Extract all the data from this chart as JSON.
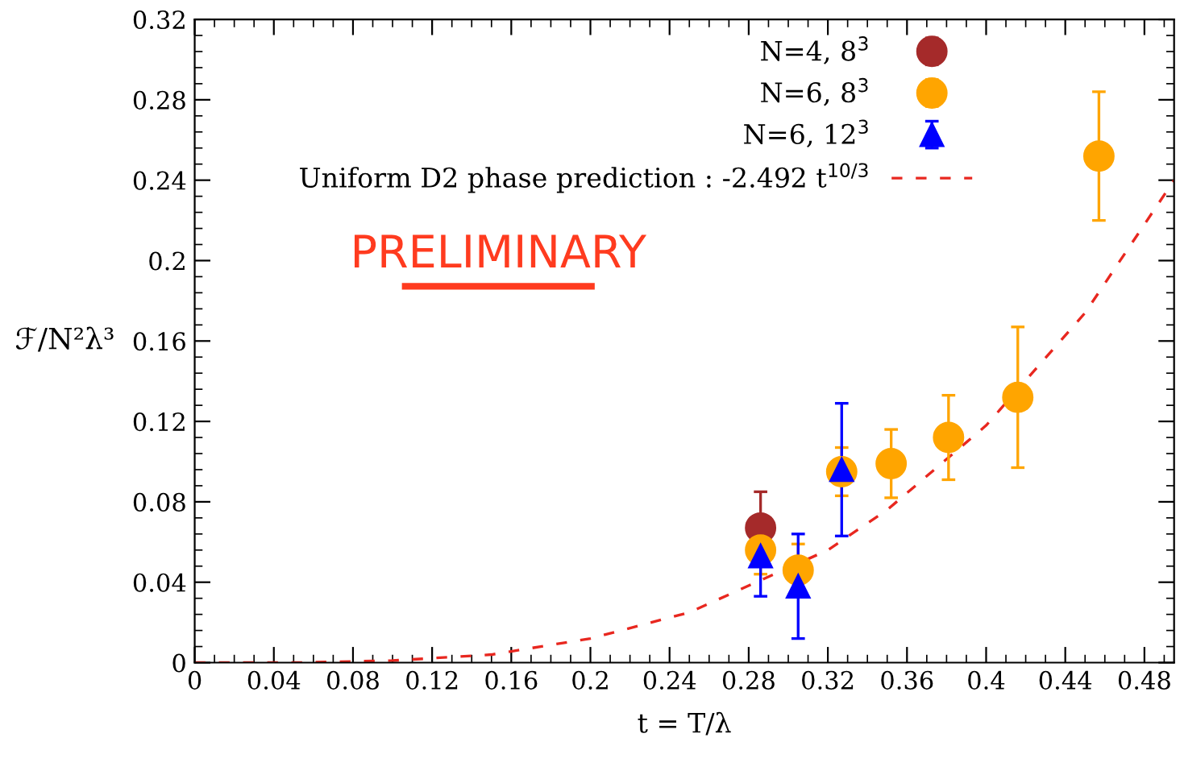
{
  "chart_data": {
    "type": "scatter",
    "xlabel": "t = T/λ",
    "ylabel": "ℱ/N²λ³",
    "annotations": [
      "PRELIMINARY"
    ],
    "xlim": [
      0,
      0.495
    ],
    "xticks": [
      0,
      0.04,
      0.08,
      0.12,
      0.16,
      0.2,
      0.24,
      0.28,
      0.32,
      0.36,
      0.4,
      0.44,
      0.48
    ],
    "ylim": [
      0,
      0.32
    ],
    "yticks": [
      0,
      0.04,
      0.08,
      0.12,
      0.16,
      0.2,
      0.24,
      0.28,
      0.32
    ],
    "grid": false,
    "legend": "top",
    "series": [
      {
        "name": "N=4, 8$^{3}$",
        "marker": "circle",
        "color": "#a52a2a",
        "x": [
          0.286
        ],
        "values": [
          0.067
        ],
        "errors": [
          0.018
        ]
      },
      {
        "name": "N=6, 8$^{3}$",
        "marker": "circle",
        "color": "#ffa500",
        "x": [
          0.286,
          0.305,
          0.327,
          0.352,
          0.381,
          0.416,
          0.457
        ],
        "values": [
          0.056,
          0.046,
          0.095,
          0.099,
          0.112,
          0.132,
          0.252
        ],
        "errors": [
          0.012,
          0.013,
          0.012,
          0.017,
          0.021,
          0.035,
          0.032
        ]
      },
      {
        "name": "N=6, 12$^{3}$",
        "marker": "triangle",
        "color": "#0000ff",
        "x": [
          0.286,
          0.305,
          0.327
        ],
        "values": [
          0.053,
          0.038,
          0.096
        ],
        "errors": [
          0.02,
          0.026,
          0.033
        ]
      },
      {
        "name": "Uniform D2 phase prediction : -2.492 t$^{10/3}$",
        "type": "line",
        "line_style": "dashed",
        "marker": "none",
        "color": "#e8271f",
        "x": [
          0,
          0.05,
          0.1,
          0.15,
          0.2,
          0.25,
          0.32,
          0.35,
          0.4,
          0.45,
          0.495
        ],
        "values": [
          0,
          0,
          0.001,
          0.004,
          0.012,
          0.025,
          0.056,
          0.076,
          0.118,
          0.174,
          0.24
        ]
      }
    ]
  }
}
